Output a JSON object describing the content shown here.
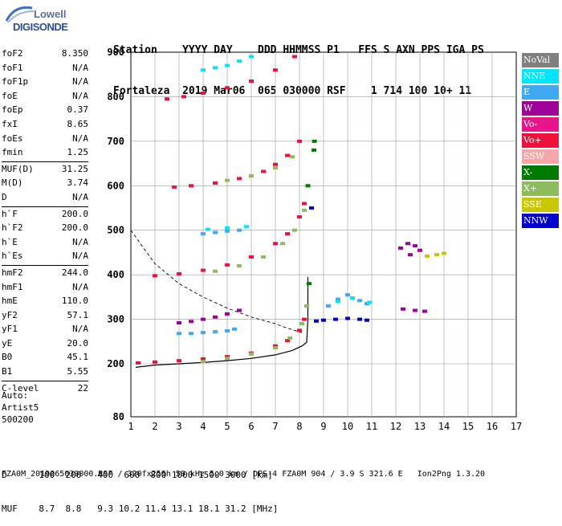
{
  "logo": {
    "line1": "Lowell",
    "line2": "DIGISONDE"
  },
  "header": {
    "line1": "Station    YYYY DAY    DDD HHMMSS P1   FFS S AXN PPS IGA PS",
    "line2": "Fortaleza  2019 Mar06  065 030000 RSF    1 714 100 10+ 11"
  },
  "params": [
    {
      "k": "foF2",
      "v": "8.350"
    },
    {
      "k": "foF1",
      "v": "N/A"
    },
    {
      "k": "foF1p",
      "v": "N/A"
    },
    {
      "k": "foE",
      "v": "N/A"
    },
    {
      "k": "foEp",
      "v": "0.37"
    },
    {
      "k": "fxI",
      "v": "8.65"
    },
    {
      "k": "foEs",
      "v": "N/A"
    },
    {
      "k": "fmin",
      "v": "1.25"
    },
    {
      "k": "MUF(D)",
      "v": "31.25",
      "sep": true
    },
    {
      "k": "M(D)",
      "v": "3.74"
    },
    {
      "k": "D",
      "v": "N/A"
    },
    {
      "k": "h`F",
      "v": "200.0",
      "sep": true
    },
    {
      "k": "h`F2",
      "v": "200.0"
    },
    {
      "k": "h`E",
      "v": "N/A"
    },
    {
      "k": "h`Es",
      "v": "N/A"
    },
    {
      "k": "hmF2",
      "v": "244.0",
      "sep": true
    },
    {
      "k": "hmF1",
      "v": "N/A"
    },
    {
      "k": "hmE",
      "v": "110.0"
    },
    {
      "k": "yF2",
      "v": "57.1"
    },
    {
      "k": "yF1",
      "v": "N/A"
    },
    {
      "k": "yE",
      "v": "20.0"
    },
    {
      "k": "B0",
      "v": "45.1"
    },
    {
      "k": "B1",
      "v": "5.55"
    },
    {
      "k": "C-level",
      "v": "22",
      "sep": true
    }
  ],
  "auto": {
    "line1": "Auto:",
    "line2": "Artist5",
    "line3": "500200"
  },
  "legend": [
    {
      "label": "NoVal",
      "color": "#7f7f7f"
    },
    {
      "label": "NNE",
      "color": "#00e5ff"
    },
    {
      "label": "E",
      "color": "#3fa9f5"
    },
    {
      "label": "W",
      "color": "#a0009a"
    },
    {
      "label": "Vo-",
      "color": "#e8148c"
    },
    {
      "label": "Vo+",
      "color": "#f0103c"
    },
    {
      "label": "SSW",
      "color": "#f7a7a7"
    },
    {
      "label": "X-",
      "color": "#007a00"
    },
    {
      "label": "X+",
      "color": "#8cbc5c"
    },
    {
      "label": "SSE",
      "color": "#c8c800"
    },
    {
      "label": "NNW",
      "color": "#0000d0"
    }
  ],
  "footer": {
    "d_line": "D      100  200   400  600  800 1000 1500 3000 [km]",
    "muf_line": "MUF    8.7  8.8   9.3 10.2 11.4 13.1 18.1 31.2 [MHz]",
    "file_line": "FZA0M_2019065030000.RSF / 320fx256h 50 kHz 5.0 km / DPS-4 FZA0M 904 / 3.9 S 321.6 E   Ion2Png 1.3.20"
  },
  "chart_data": {
    "type": "scatter",
    "title": "",
    "xlabel": "",
    "ylabel": "",
    "xlim": [
      1,
      17
    ],
    "ylim": [
      80,
      900
    ],
    "x_ticks": [
      1,
      2,
      3,
      4,
      5,
      6,
      7,
      8,
      9,
      10,
      11,
      12,
      13,
      14,
      15,
      16,
      17
    ],
    "y_ticks": [
      80,
      200,
      300,
      400,
      500,
      600,
      700,
      800,
      900
    ],
    "series": [
      {
        "name": "Vo+",
        "color": "#f0103c",
        "points": [
          [
            1.3,
            202
          ],
          [
            2,
            204
          ],
          [
            3,
            207
          ],
          [
            4,
            211
          ],
          [
            5,
            216
          ],
          [
            6,
            224
          ],
          [
            7,
            240
          ],
          [
            7.5,
            252
          ],
          [
            8,
            275
          ],
          [
            8.2,
            300
          ],
          [
            2,
            398
          ],
          [
            3,
            402
          ],
          [
            4,
            410
          ],
          [
            5,
            422
          ],
          [
            6,
            440
          ],
          [
            7,
            470
          ],
          [
            7.5,
            492
          ],
          [
            8,
            530
          ],
          [
            8.2,
            560
          ],
          [
            2.8,
            597
          ],
          [
            3.5,
            600
          ],
          [
            4.5,
            606
          ],
          [
            5.5,
            616
          ],
          [
            6.5,
            632
          ],
          [
            7,
            648
          ],
          [
            7.5,
            668
          ],
          [
            8,
            700
          ],
          [
            2.5,
            795
          ],
          [
            3.2,
            800
          ],
          [
            4,
            808
          ],
          [
            5,
            820
          ],
          [
            6,
            835
          ],
          [
            7,
            860
          ],
          [
            7.8,
            890
          ]
        ]
      },
      {
        "name": "X+",
        "color": "#8cbc5c",
        "points": [
          [
            4,
            205
          ],
          [
            5,
            212
          ],
          [
            6,
            222
          ],
          [
            7,
            236
          ],
          [
            7.6,
            258
          ],
          [
            8.1,
            290
          ],
          [
            8.3,
            330
          ],
          [
            4.5,
            408
          ],
          [
            5.5,
            420
          ],
          [
            6.5,
            440
          ],
          [
            7.3,
            470
          ],
          [
            7.8,
            500
          ],
          [
            8.2,
            545
          ],
          [
            5,
            612
          ],
          [
            6,
            622
          ],
          [
            7,
            640
          ],
          [
            7.7,
            665
          ]
        ]
      },
      {
        "name": "E",
        "color": "#3fa9f5",
        "points": [
          [
            3,
            268
          ],
          [
            3.5,
            268
          ],
          [
            4,
            270
          ],
          [
            4.5,
            272
          ],
          [
            5,
            274
          ],
          [
            5.3,
            278
          ],
          [
            4,
            492
          ],
          [
            4.5,
            495
          ],
          [
            5,
            498
          ],
          [
            5.5,
            500
          ],
          [
            9.2,
            330
          ],
          [
            9.6,
            345
          ],
          [
            10,
            355
          ],
          [
            10.5,
            342
          ],
          [
            10.8,
            335
          ]
        ]
      },
      {
        "name": "NNE",
        "color": "#00e5ff",
        "points": [
          [
            4,
            860
          ],
          [
            4.5,
            865
          ],
          [
            5,
            870
          ],
          [
            5.5,
            880
          ],
          [
            6,
            890
          ],
          [
            4.2,
            502
          ],
          [
            5,
            505
          ],
          [
            5.8,
            508
          ],
          [
            9.6,
            340
          ],
          [
            10.2,
            348
          ],
          [
            10.9,
            338
          ]
        ]
      },
      {
        "name": "W",
        "color": "#a0009a",
        "points": [
          [
            3,
            292
          ],
          [
            3.5,
            295
          ],
          [
            4,
            300
          ],
          [
            4.5,
            305
          ],
          [
            5,
            312
          ],
          [
            5.5,
            320
          ],
          [
            12.2,
            460
          ],
          [
            12.5,
            470
          ],
          [
            12.8,
            465
          ],
          [
            13,
            455
          ],
          [
            12.6,
            445
          ],
          [
            12.3,
            323
          ],
          [
            12.8,
            320
          ],
          [
            13.2,
            318
          ]
        ]
      },
      {
        "name": "SSE",
        "color": "#c8c800",
        "points": [
          [
            13.3,
            442
          ],
          [
            13.7,
            445
          ],
          [
            14,
            448
          ]
        ]
      },
      {
        "name": "NNW",
        "color": "#0000d0",
        "points": [
          [
            8.7,
            296
          ],
          [
            9,
            298
          ],
          [
            9.5,
            300
          ],
          [
            10,
            302
          ],
          [
            10.5,
            300
          ],
          [
            10.8,
            298
          ],
          [
            8.5,
            550
          ]
        ]
      },
      {
        "name": "X-",
        "color": "#007a00",
        "points": [
          [
            8.35,
            600
          ],
          [
            8.4,
            380
          ],
          [
            8.6,
            680
          ],
          [
            8.62,
            700
          ]
        ]
      }
    ],
    "curves": [
      {
        "name": "trace",
        "points": [
          [
            1.2,
            192
          ],
          [
            2,
            197
          ],
          [
            3,
            200
          ],
          [
            4,
            203
          ],
          [
            5,
            207
          ],
          [
            6,
            212
          ],
          [
            7,
            220
          ],
          [
            7.7,
            230
          ],
          [
            8.1,
            240
          ],
          [
            8.3,
            248
          ]
        ]
      },
      {
        "name": "profile",
        "points": [
          [
            8.3,
            248
          ],
          [
            8.35,
            300
          ],
          [
            8.35,
            380
          ],
          [
            8.35,
            395
          ]
        ]
      },
      {
        "name": "MUF",
        "points": [
          [
            1,
            500
          ],
          [
            1.5,
            462
          ],
          [
            2,
            425
          ],
          [
            3,
            380
          ],
          [
            4,
            350
          ],
          [
            5,
            325
          ],
          [
            6,
            305
          ],
          [
            7,
            290
          ],
          [
            7.5,
            280
          ],
          [
            8.1,
            270
          ]
        ]
      }
    ]
  }
}
